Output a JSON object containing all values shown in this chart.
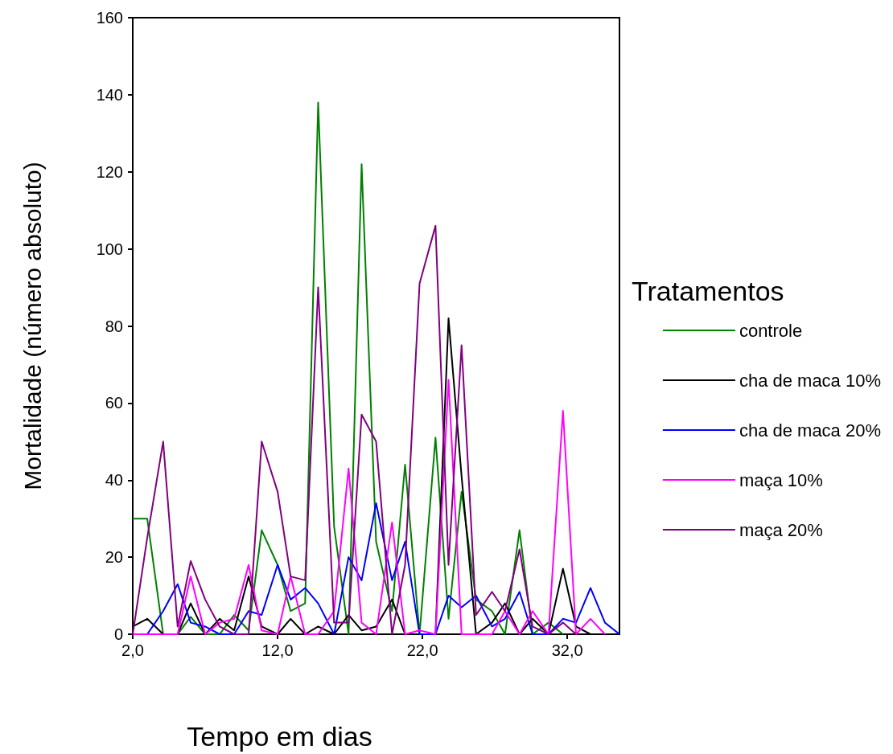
{
  "chart_data": {
    "type": "line",
    "xlabel": "Tempo em dias",
    "ylabel": "Mortalidade (número absoluto)",
    "legend_title": "Tratamentos",
    "x": [
      2.0,
      3.0,
      4.1,
      5.1,
      6.0,
      7.0,
      8.0,
      9.0,
      10.0,
      10.9,
      12.0,
      12.9,
      13.9,
      14.8,
      15.9,
      16.9,
      17.8,
      18.8,
      19.9,
      20.8,
      21.8,
      22.9,
      23.8,
      24.7,
      25.7,
      26.8,
      27.7,
      28.7,
      29.6,
      30.7,
      31.7,
      32.6,
      33.6,
      34.6,
      35.6
    ],
    "series": [
      {
        "name": "controle",
        "color": "#008000",
        "values": [
          30,
          30,
          0,
          0,
          4.5,
          0,
          0,
          5,
          1,
          27,
          18,
          6,
          8,
          138,
          28,
          0,
          122,
          24,
          6,
          44,
          0,
          51,
          4,
          37,
          9,
          6,
          0,
          27,
          0,
          3,
          0,
          null,
          null,
          null,
          null
        ]
      },
      {
        "name": "cha de maca 10%",
        "color": "#000000",
        "values": [
          2,
          4,
          0,
          0,
          8,
          0,
          4,
          1,
          15,
          2,
          0,
          4,
          0,
          2,
          0,
          5,
          1,
          2,
          9,
          0,
          0,
          0,
          82,
          41,
          0,
          3,
          8,
          0,
          4,
          0,
          17,
          2,
          0,
          null,
          null
        ]
      },
      {
        "name": "cha de maca 20%",
        "color": "#0000ff",
        "values": [
          0,
          0,
          6,
          13,
          3,
          2,
          0,
          0,
          6,
          5,
          18,
          9,
          12,
          8,
          0,
          20,
          14,
          34,
          14,
          24,
          0,
          0,
          10,
          7,
          10,
          2,
          4,
          11,
          0,
          0,
          4,
          3,
          12,
          3,
          0
        ]
      },
      {
        "name": "maça 10%",
        "color": "#ff00ff",
        "values": [
          0,
          0,
          0,
          0,
          15,
          0,
          3,
          4,
          18,
          1,
          0,
          15,
          0,
          0,
          6,
          43,
          3,
          0,
          29,
          0,
          1,
          0,
          66,
          0,
          0,
          0,
          6,
          0,
          6,
          0,
          58,
          0,
          4,
          0,
          null
        ]
      },
      {
        "name": "maça 20%",
        "color": "#800080",
        "values": [
          0,
          25,
          50,
          2,
          19,
          9,
          2,
          0,
          0,
          50,
          37,
          15,
          14,
          90,
          3,
          3,
          57,
          50,
          0,
          18,
          91,
          106,
          18,
          75,
          5,
          11,
          6,
          22,
          2,
          0,
          3,
          0,
          null,
          null,
          null
        ]
      }
    ],
    "xlim": [
      2,
      35.6
    ],
    "xticks": [
      {
        "value": 2,
        "label": "2,0"
      },
      {
        "value": 12,
        "label": "12,0"
      },
      {
        "value": 22,
        "label": "22,0"
      },
      {
        "value": 32,
        "label": "32,0"
      }
    ],
    "ylim": [
      0,
      160
    ],
    "yticks": [
      0,
      20,
      40,
      60,
      80,
      100,
      120,
      140,
      160
    ],
    "grid": false,
    "legend": "right",
    "marker": "none"
  }
}
